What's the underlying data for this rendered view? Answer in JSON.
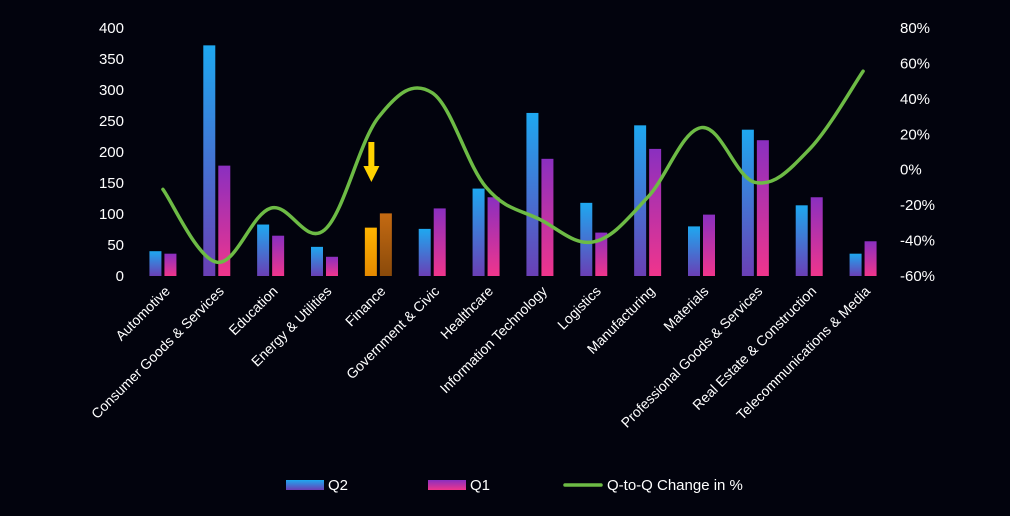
{
  "chart_data": {
    "type": "bar",
    "categories": [
      "Automotive",
      "Consumer Goods & Services",
      "Education",
      "Energy & Utilities",
      "Finance",
      "Government & Civic",
      "Healthcare",
      "Information Technology",
      "Logistics",
      "Manufacturing",
      "Materials",
      "Professional Goods & Services",
      "Real Estate & Construction",
      "Telecommunications & Media"
    ],
    "series": [
      {
        "name": "Q2",
        "type": "bar",
        "axis": "left",
        "values": [
          40,
          372,
          83,
          47,
          78,
          76,
          141,
          263,
          118,
          243,
          80,
          236,
          114,
          36
        ],
        "color_top": "#1ea8f0",
        "color_bottom": "#6a3fb5"
      },
      {
        "name": "Q1",
        "type": "bar",
        "axis": "left",
        "values": [
          36,
          178,
          65,
          31,
          101,
          109,
          127,
          189,
          70,
          205,
          99,
          219,
          127,
          56
        ],
        "color_top": "#8a2fc0",
        "color_bottom": "#f0358c"
      },
      {
        "name": "Q-to-Q Change in %",
        "type": "line",
        "axis": "right",
        "values": [
          -11.1,
          -52.2,
          -21.7,
          -34.0,
          29.5,
          43.4,
          -9.9,
          -28.1,
          -40.7,
          -15.6,
          23.8,
          -7.2,
          11.4,
          55.6
        ],
        "color": "#6dbb45"
      }
    ],
    "title": "",
    "xlabel": "",
    "ylabel": "",
    "ylim": [
      0,
      400
    ],
    "y_ticks": [
      "0",
      "50",
      "100",
      "150",
      "200",
      "250",
      "300",
      "350",
      "400"
    ],
    "y_tick_values": [
      0,
      50,
      100,
      150,
      200,
      250,
      300,
      350,
      400
    ],
    "y2lim": [
      -60,
      80
    ],
    "y2_ticks": [
      "-60%",
      "-40%",
      "-20%",
      "0%",
      "20%",
      "40%",
      "60%",
      "80%"
    ],
    "y2_tick_values": [
      -60,
      -40,
      -20,
      0,
      20,
      40,
      60,
      80
    ],
    "grid": false,
    "legend_position": "bottom",
    "highlight": {
      "category": "Finance",
      "marker": "down-arrow-icon",
      "color": "#ffd200",
      "bar_colors": [
        "#ffb400",
        "#c46a12"
      ]
    },
    "background": "#02030d"
  }
}
